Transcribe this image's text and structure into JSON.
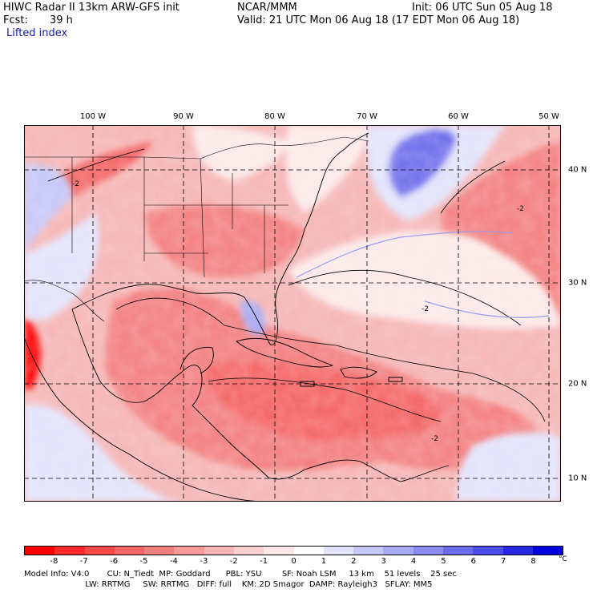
{
  "header": {
    "title_left": "HIWC Radar II 13km ARW-GFS init",
    "org": "NCAR/MMM",
    "init": "Init: 06 UTC Sun 05 Aug 18",
    "fcst_label": "Fcst:",
    "fcst_value": "39 h",
    "valid": "Valid: 21 UTC Mon 06 Aug 18 (17 EDT Mon 06 Aug 18)",
    "field": "Lifted index"
  },
  "map": {
    "lon_labels": [
      "100 W",
      "90 W",
      "80 W",
      "70 W",
      "60 W",
      "50 W"
    ],
    "lat_labels": [
      "40 N",
      "30 N",
      "20 N",
      "10 N"
    ],
    "contour_labels": [
      "-2",
      "-2",
      "-2",
      "-2"
    ]
  },
  "colorbar": {
    "ticks": [
      "-8",
      "-7",
      "-6",
      "-5",
      "-4",
      "-3",
      "-2",
      "-1",
      "0",
      "1",
      "2",
      "3",
      "4",
      "5",
      "6",
      "7",
      "8"
    ],
    "unit": "°C",
    "colors": [
      "#ff0000",
      "#fa2a2a",
      "#f74848",
      "#f46464",
      "#f37e7e",
      "#f49a9a",
      "#f6b4b4",
      "#f9cfcf",
      "#fce8e8",
      "#ffffff",
      "#e2e2fb",
      "#c6c6f7",
      "#a9a9f3",
      "#8b8bef",
      "#6c6cec",
      "#4b4be8",
      "#2828e4",
      "#0000e0"
    ]
  },
  "footer": {
    "line1": "Model Info: V4.0       CU: N_Tiedt  MP: Goddard      PBL: YSU        SF: Noah LSM     13 km    51 levels    25 sec",
    "line2": "                        LW: RRTMG     SW: RRTMG   DIFF: full    KM: 2D Smagor  DAMP: Rayleigh3   SFLAY: MM5"
  }
}
